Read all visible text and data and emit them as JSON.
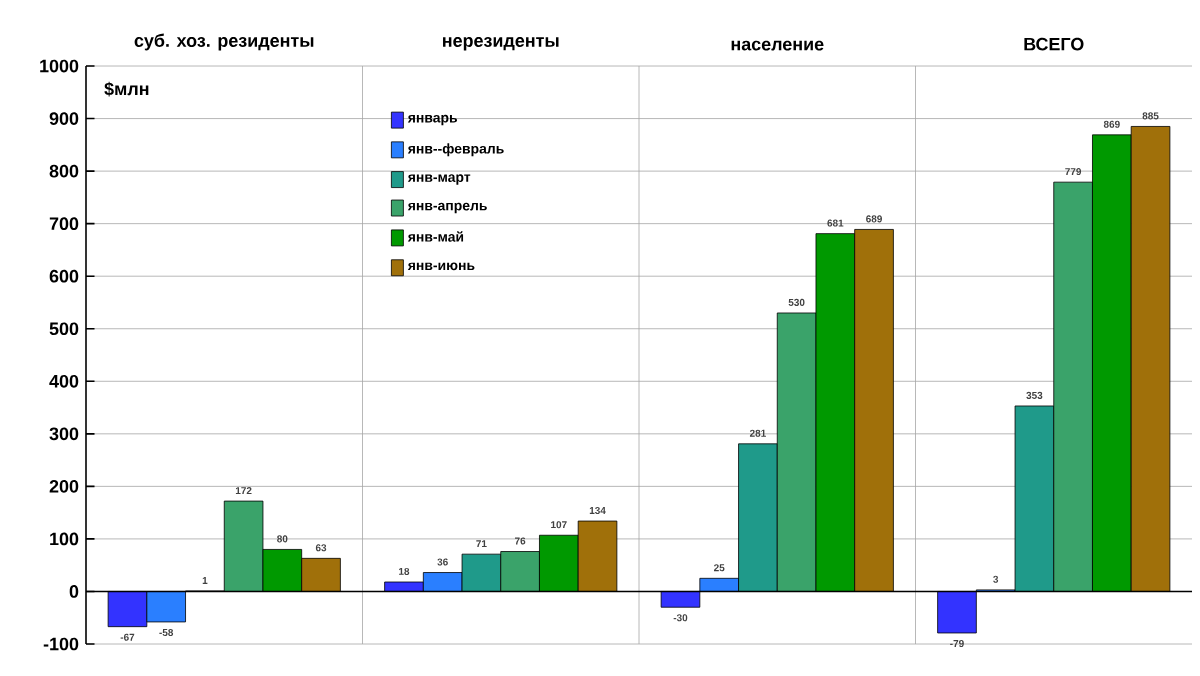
{
  "chart_data": {
    "type": "bar",
    "ylabel": "$млн",
    "categories": [
      "суб. хоз. резиденты",
      "нерезиденты",
      "население",
      "ВСЕГО"
    ],
    "series": [
      {
        "name": "январь",
        "color": "#3333ff",
        "values": [
          -67,
          18,
          -30,
          -79
        ]
      },
      {
        "name": "янв--февраль",
        "color": "#2a7fff",
        "values": [
          -58,
          36,
          25,
          3
        ]
      },
      {
        "name": "янв-март",
        "color": "#1f9a8a",
        "values": [
          1,
          71,
          281,
          353
        ]
      },
      {
        "name": "янв-апрель",
        "color": "#3aa36a",
        "values": [
          172,
          76,
          530,
          779
        ]
      },
      {
        "name": "янв-май",
        "color": "#009900",
        "values": [
          80,
          107,
          681,
          869
        ]
      },
      {
        "name": "янв-июнь",
        "color": "#a0700a",
        "values": [
          63,
          134,
          689,
          885
        ]
      }
    ],
    "ylim": [
      -100,
      1000
    ],
    "yticks": [
      -100,
      0,
      100,
      200,
      300,
      400,
      500,
      600,
      700,
      800,
      900,
      1000
    ],
    "grid": "y",
    "legend": "top left",
    "data_labels": true
  }
}
